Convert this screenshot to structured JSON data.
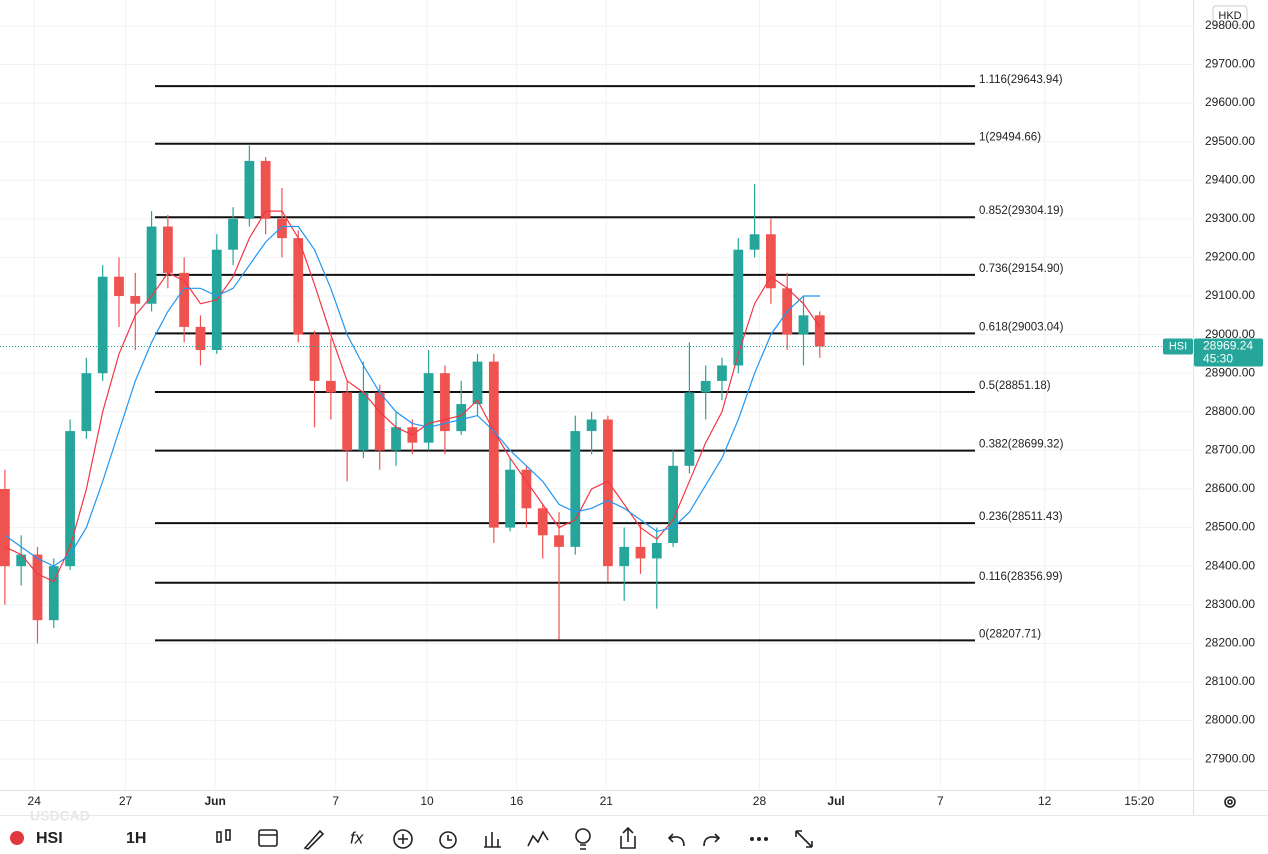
{
  "chart_data": {
    "type": "candlestick",
    "symbol": "HSI",
    "interval": "1H",
    "currency": "HKD",
    "watermark": "USDCAD",
    "up_color": "#26a69a",
    "down_color": "#ef5350",
    "grid": true,
    "x": [
      0,
      1,
      2,
      3,
      4,
      5,
      6,
      7,
      8,
      9,
      10,
      11,
      12,
      13,
      14,
      15,
      16,
      17,
      18,
      19,
      20,
      21,
      22,
      23,
      24,
      25,
      26,
      27,
      28,
      29,
      30,
      31,
      32,
      33,
      34,
      35,
      36,
      37,
      38,
      39,
      40,
      41,
      42,
      43,
      44,
      45,
      46,
      47,
      48,
      49,
      50
    ],
    "open": [
      28600,
      28400,
      28430,
      28260,
      28400,
      28750,
      28900,
      29150,
      29100,
      29080,
      29280,
      29160,
      29020,
      28960,
      29220,
      29300,
      29450,
      29300,
      29250,
      29000,
      28880,
      28850,
      28700,
      28850,
      28700,
      28760,
      28720,
      28900,
      28750,
      28820,
      28930,
      28500,
      28650,
      28550,
      28480,
      28450,
      28750,
      28780,
      28400,
      28450,
      28420,
      28460,
      28660,
      28850,
      28880,
      28920,
      29220,
      29260,
      29120,
      29000,
      29050
    ],
    "high": [
      28650,
      28480,
      28450,
      28420,
      28780,
      28940,
      29180,
      29200,
      29160,
      29320,
      29310,
      29200,
      29050,
      29260,
      29330,
      29490,
      29460,
      29380,
      29270,
      29010,
      28990,
      28880,
      28930,
      28870,
      28800,
      28780,
      28960,
      28920,
      28880,
      28950,
      28950,
      28680,
      28660,
      28560,
      28540,
      28790,
      28800,
      28790,
      28500,
      28510,
      28500,
      28700,
      28980,
      28920,
      28940,
      29250,
      29390,
      29300,
      29160,
      29100,
      29060
    ],
    "low": [
      28300,
      28350,
      28200,
      28240,
      28390,
      28730,
      28880,
      29020,
      28960,
      29060,
      29120,
      28980,
      28920,
      28950,
      29180,
      29280,
      29260,
      29200,
      28980,
      28760,
      28780,
      28620,
      28680,
      28650,
      28660,
      28690,
      28700,
      28690,
      28740,
      28790,
      28460,
      28490,
      28500,
      28420,
      28210,
      28430,
      28690,
      28360,
      28310,
      28380,
      28290,
      28450,
      28640,
      28780,
      28830,
      28900,
      29200,
      29080,
      28960,
      28920,
      28940
    ],
    "close": [
      28400,
      28430,
      28260,
      28400,
      28750,
      28900,
      29150,
      29100,
      29080,
      29280,
      29160,
      29020,
      28960,
      29220,
      29300,
      29450,
      29300,
      29250,
      29000,
      28880,
      28850,
      28700,
      28850,
      28700,
      28760,
      28720,
      28900,
      28750,
      28820,
      28930,
      28500,
      28650,
      28550,
      28480,
      28450,
      28750,
      28780,
      28400,
      28450,
      28420,
      28460,
      28660,
      28850,
      28880,
      28920,
      29220,
      29260,
      29120,
      29000,
      29050,
      28969.24
    ],
    "moving_averages": [
      {
        "color": "#f23645",
        "values": [
          28450,
          28430,
          28380,
          28360,
          28450,
          28600,
          28800,
          28950,
          29050,
          29100,
          29160,
          29140,
          29080,
          29090,
          29150,
          29250,
          29320,
          29320,
          29250,
          29130,
          29000,
          28880,
          28850,
          28800,
          28760,
          28740,
          28770,
          28780,
          28790,
          28830,
          28750,
          28680,
          28620,
          28560,
          28500,
          28520,
          28600,
          28620,
          28560,
          28500,
          28470,
          28520,
          28620,
          28720,
          28800,
          28950,
          29080,
          29150,
          29120,
          29080,
          29020
        ]
      },
      {
        "color": "#2196f3",
        "values": [
          28480,
          28450,
          28420,
          28400,
          28430,
          28500,
          28620,
          28750,
          28880,
          28980,
          29060,
          29120,
          29120,
          29100,
          29120,
          29180,
          29240,
          29280,
          29280,
          29220,
          29120,
          29000,
          28920,
          28850,
          28800,
          28770,
          28760,
          28770,
          28780,
          28790,
          28750,
          28700,
          28660,
          28620,
          28560,
          28540,
          28550,
          28570,
          28550,
          28520,
          28490,
          28500,
          28540,
          28610,
          28680,
          28780,
          28900,
          29000,
          29060,
          29100,
          29100
        ]
      }
    ],
    "fib_levels": [
      {
        "label": "1.116(29643.94)",
        "value": 29643.94
      },
      {
        "label": "1(29494.66)",
        "value": 29494.66
      },
      {
        "label": "0.852(29304.19)",
        "value": 29304.19
      },
      {
        "label": "0.736(29154.90)",
        "value": 29154.9
      },
      {
        "label": "0.618(29003.04)",
        "value": 29003.04
      },
      {
        "label": "0.5(28851.18)",
        "value": 28851.18
      },
      {
        "label": "0.382(28699.32)",
        "value": 28699.32
      },
      {
        "label": "0.236(28511.43)",
        "value": 28511.43
      },
      {
        "label": "0.116(28356.99)",
        "value": 28356.99
      },
      {
        "label": "0(28207.71)",
        "value": 28207.71
      }
    ],
    "last_price": 28969.24,
    "countdown": "45:30",
    "xlim": [
      -0.3,
      72.9
    ],
    "ylim": [
      27820,
      29867
    ],
    "xticks": [
      {
        "value": 1.8,
        "label": "24"
      },
      {
        "value": 7.4,
        "label": "27"
      },
      {
        "value": 12.9,
        "label": "Jun"
      },
      {
        "value": 20.3,
        "label": "7"
      },
      {
        "value": 25.9,
        "label": "10"
      },
      {
        "value": 31.4,
        "label": "16"
      },
      {
        "value": 36.9,
        "label": "21"
      },
      {
        "value": 46.3,
        "label": "28"
      },
      {
        "value": 51.0,
        "label": "Jul"
      },
      {
        "value": 57.4,
        "label": "7"
      },
      {
        "value": 63.8,
        "label": "12"
      },
      {
        "value": 69.6,
        "label": "15:20"
      }
    ],
    "yticks": [
      {
        "value": 27900,
        "label": "27900.00"
      },
      {
        "value": 28000,
        "label": "28000.00"
      },
      {
        "value": 28100,
        "label": "28100.00"
      },
      {
        "value": 28200,
        "label": "28200.00"
      },
      {
        "value": 28300,
        "label": "28300.00"
      },
      {
        "value": 28400,
        "label": "28400.00"
      },
      {
        "value": 28500,
        "label": "28500.00"
      },
      {
        "value": 28600,
        "label": "28600.00"
      },
      {
        "value": 28700,
        "label": "28700.00"
      },
      {
        "value": 28800,
        "label": "28800.00"
      },
      {
        "value": 28900,
        "label": "28900.00"
      },
      {
        "value": 29000,
        "label": "29000.00"
      },
      {
        "value": 29100,
        "label": "29100.00"
      },
      {
        "value": 29200,
        "label": "29200.00"
      },
      {
        "value": 29300,
        "label": "29300.00"
      },
      {
        "value": 29400,
        "label": "29400.00"
      },
      {
        "value": 29500,
        "label": "29500.00"
      },
      {
        "value": 29600,
        "label": "29600.00"
      },
      {
        "value": 29700,
        "label": "29700.00"
      },
      {
        "value": 29800,
        "label": "29800.00"
      }
    ]
  }
}
